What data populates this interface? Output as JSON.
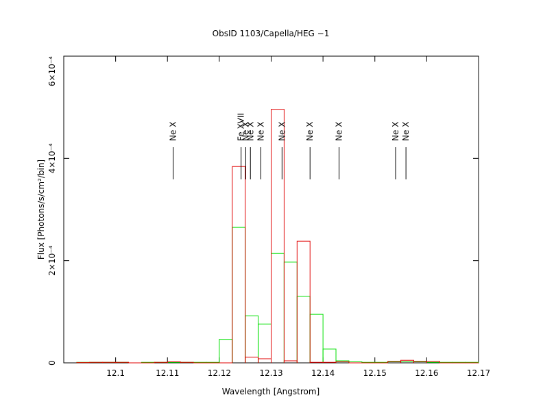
{
  "chart_data": {
    "type": "histogram",
    "title": "ObsID 1103/Capella/HEG −1",
    "xlabel": "Wavelength [Angstrom]",
    "ylabel": "Flux [Photons/s/cm²/bin]",
    "xlim": [
      12.09,
      12.17
    ],
    "ylim": [
      0,
      0.0006
    ],
    "xticks": [
      12.1,
      12.11,
      12.12,
      12.13,
      12.14,
      12.15,
      12.16,
      12.17
    ],
    "yticks": [
      0,
      {
        "value": 0.0002,
        "label": "2×10⁻⁴"
      },
      {
        "value": 0.0004,
        "label": "4×10⁻⁴"
      },
      {
        "value": 0.0006,
        "label": "6×10⁻⁴"
      }
    ],
    "bins": [
      12.0925,
      12.095,
      12.0975,
      12.1,
      12.1025,
      12.105,
      12.1075,
      12.11,
      12.1125,
      12.115,
      12.1175,
      12.12,
      12.1225,
      12.125,
      12.1275,
      12.13,
      12.1325,
      12.135,
      12.1375,
      12.14,
      12.1425,
      12.145,
      12.1475,
      12.15,
      12.1525,
      12.155,
      12.1575,
      12.16,
      12.1625,
      12.165,
      12.1675,
      12.17
    ],
    "series": [
      {
        "color": "#00e000",
        "values": [
          1e-06,
          1e-06,
          1e-06,
          1e-06,
          0,
          1e-06,
          1e-06,
          1e-06,
          1e-06,
          1e-06,
          1e-06,
          4.6e-05,
          0.000265,
          9.2e-05,
          7.6e-05,
          0.000214,
          0.000197,
          0.00013,
          9.5e-05,
          2.7e-05,
          4e-06,
          2e-06,
          1e-06,
          1e-06,
          2e-06,
          2e-06,
          2e-06,
          1e-06,
          1e-06,
          1e-06,
          1e-06
        ]
      },
      {
        "color": "#e00000",
        "values": [
          5e-07,
          1e-06,
          1e-06,
          1e-06,
          0,
          0,
          1e-06,
          2e-06,
          1e-06,
          0,
          0,
          0,
          0.000384,
          1.1e-05,
          8e-06,
          0.000496,
          4e-06,
          0.000238,
          1e-06,
          1e-06,
          2e-06,
          0,
          0,
          0,
          3e-06,
          5e-06,
          3e-06,
          3e-06,
          0,
          0,
          0
        ]
      }
    ],
    "annotations": [
      {
        "text": "Ne X",
        "x": 12.1111
      },
      {
        "text": "Fe XVII",
        "x": 12.1242
      },
      {
        "text": "Ne X",
        "x": 12.1251
      },
      {
        "text": "Ne X",
        "x": 12.126
      },
      {
        "text": "Ne X",
        "x": 12.128
      },
      {
        "text": "Ne X",
        "x": 12.1321
      },
      {
        "text": "Ne X",
        "x": 12.1375
      },
      {
        "text": "Ne X",
        "x": 12.1431
      },
      {
        "text": "Ne X",
        "x": 12.154
      },
      {
        "text": "Ne X",
        "x": 12.156
      }
    ]
  }
}
